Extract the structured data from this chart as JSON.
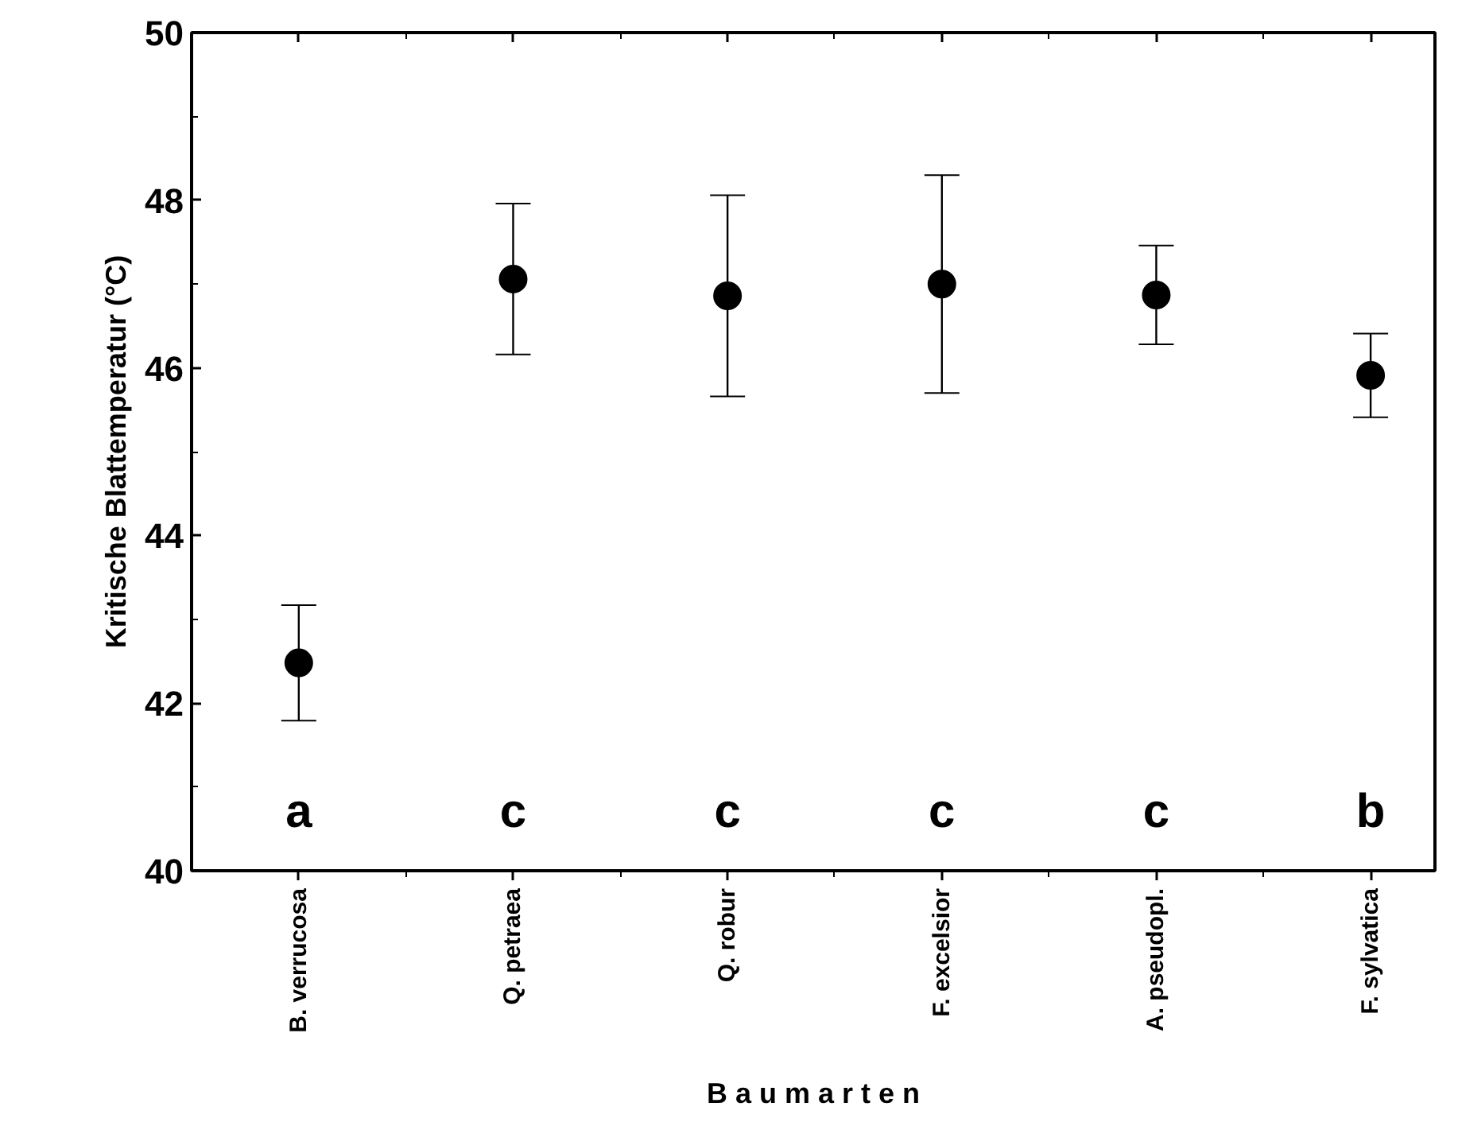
{
  "chart_data": {
    "type": "scatter",
    "xlabel": "B a u m a r t e n",
    "ylabel": "Kritische Blattemperatur (°C)",
    "categories": [
      "B. verrucosa",
      "Q. petraea",
      "Q. robur",
      "F. excelsior",
      "A. pseudopl.",
      "F. sylvatica"
    ],
    "values": [
      42.48,
      47.06,
      46.86,
      47.0,
      46.87,
      45.91
    ],
    "errors": [
      0.69,
      0.9,
      1.2,
      1.3,
      0.59,
      0.5
    ],
    "color": "#000000",
    "marker": "circle",
    "ylim": [
      40,
      50
    ],
    "yticks": [
      40,
      42,
      44,
      46,
      48,
      50
    ],
    "grid": false,
    "annotations": [
      "a",
      "c",
      "c",
      "c",
      "c",
      "b"
    ]
  }
}
